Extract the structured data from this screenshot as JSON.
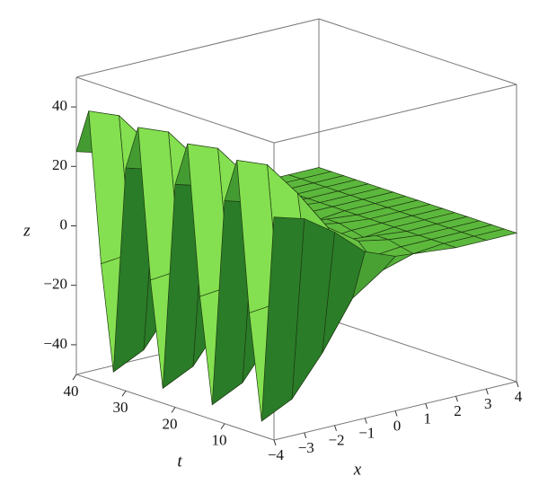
{
  "chart_data": {
    "type": "surface",
    "color": "#5cb83c",
    "x": [
      -4,
      -3,
      -2,
      -1,
      0,
      1,
      2,
      3,
      4
    ],
    "t": [
      0,
      2.5,
      5,
      7.5,
      10,
      12.5,
      15,
      17.5,
      20,
      22.5,
      25,
      27.5,
      30,
      32.5,
      35,
      37.5,
      40
    ],
    "z": [
      [
        25,
        -45,
        -10,
        40,
        25,
        -45,
        -10,
        40,
        25,
        -45,
        -10,
        40,
        25,
        -45,
        -10,
        40,
        25
      ],
      [
        22,
        -40,
        -9,
        36,
        22,
        -40,
        -9,
        36,
        22,
        -40,
        -9,
        36,
        22,
        -40,
        -9,
        36,
        22
      ],
      [
        15,
        -27,
        -6,
        24,
        15,
        -27,
        -6,
        24,
        15,
        -27,
        -6,
        24,
        15,
        -27,
        -6,
        24,
        15
      ],
      [
        6,
        -11,
        -3,
        10,
        6,
        -11,
        -3,
        10,
        6,
        -11,
        -3,
        10,
        6,
        -11,
        -3,
        10,
        6
      ],
      [
        2,
        -4,
        -1,
        3,
        2,
        -4,
        -1,
        3,
        2,
        -4,
        -1,
        3,
        2,
        -4,
        -1,
        3,
        2
      ],
      [
        1,
        -1,
        0,
        1,
        1,
        -1,
        0,
        1,
        1,
        -1,
        0,
        1,
        1,
        -1,
        0,
        1,
        1
      ],
      [
        0,
        0,
        0,
        0,
        0,
        0,
        0,
        0,
        0,
        0,
        0,
        0,
        0,
        0,
        0,
        0,
        0
      ],
      [
        0,
        0,
        0,
        0,
        0,
        0,
        0,
        0,
        0,
        0,
        0,
        0,
        0,
        0,
        0,
        0,
        0
      ],
      [
        0,
        0,
        0,
        0,
        0,
        0,
        0,
        0,
        0,
        0,
        0,
        0,
        0,
        0,
        0,
        0,
        0
      ]
    ],
    "xlim": [
      -4,
      4
    ],
    "tlim": [
      0,
      40
    ],
    "zlim": [
      -50,
      50
    ],
    "xticks": [
      {
        "value": -4,
        "label": "−4"
      },
      {
        "value": -3,
        "label": "−3"
      },
      {
        "value": -2,
        "label": "−2"
      },
      {
        "value": -1,
        "label": "−1"
      },
      0,
      1,
      2,
      3,
      4
    ],
    "tticks": [
      10,
      20,
      30,
      40
    ],
    "zticks": [
      {
        "value": -40,
        "label": "−40"
      },
      {
        "value": -20,
        "label": "−20"
      },
      0,
      20,
      40
    ],
    "x_label": "x",
    "t_label": "t",
    "z_label": "z"
  }
}
